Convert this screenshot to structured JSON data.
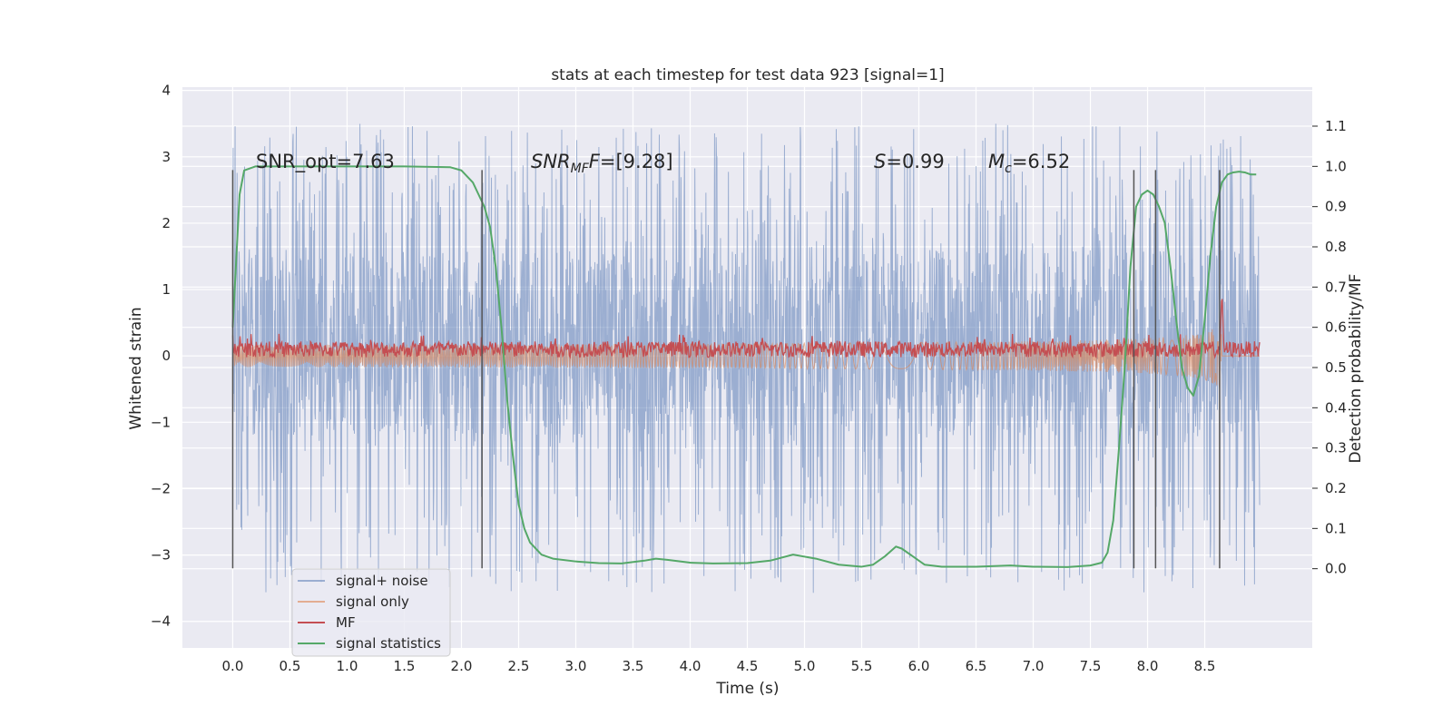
{
  "chart_data": {
    "type": "line",
    "title": "stats at each timestep for test data 923 [signal=1]",
    "xlabel": "Time (s)",
    "ylabel_left": "Whitened strain",
    "ylabel_right": "Detection probability/MF",
    "xlim": [
      -0.44,
      9.44
    ],
    "ylim_left": [
      -4.4,
      4.05
    ],
    "ylim_right": [
      -0.197,
      1.197
    ],
    "xticks": [
      0.0,
      0.5,
      1.0,
      1.5,
      2.0,
      2.5,
      3.0,
      3.5,
      4.0,
      4.5,
      5.0,
      5.5,
      6.0,
      6.5,
      7.0,
      7.5,
      8.0,
      8.5
    ],
    "xtick_labels": [
      "0.0",
      "0.5",
      "1.0",
      "1.5",
      "2.0",
      "2.5",
      "3.0",
      "3.5",
      "4.0",
      "4.5",
      "5.0",
      "5.5",
      "6.0",
      "6.5",
      "7.0",
      "7.5",
      "8.0",
      "8.5"
    ],
    "yticks_left": [
      -4,
      -3,
      -2,
      -1,
      0,
      1,
      2,
      3,
      4
    ],
    "ytick_labels_left": [
      "−4",
      "−3",
      "−2",
      "−1",
      "0",
      "1",
      "2",
      "3",
      "4"
    ],
    "yticks_right": [
      0.0,
      0.1,
      0.2,
      0.3,
      0.4,
      0.5,
      0.6,
      0.7,
      0.8,
      0.9,
      1.0,
      1.1
    ],
    "ytick_labels_right": [
      "0.0",
      "0.1",
      "0.2",
      "0.3",
      "0.4",
      "0.5",
      "0.6",
      "0.7",
      "0.8",
      "0.9",
      "1.0",
      "1.1"
    ],
    "grid": true,
    "legend_position": "lower-left",
    "annotations": {
      "snr_opt": "SNR_opt=7.63",
      "snr_mf_name": "SNR",
      "snr_mf_sub": "MF",
      "snr_mf_value": "=[9.28]",
      "s_name": "S",
      "s_value": "=0.99",
      "mc_name": "M",
      "mc_sub": "c",
      "mc_value": "=6.52"
    },
    "vertical_lines_x": [
      0.0,
      2.18,
      7.88,
      8.07,
      8.63
    ],
    "vertical_lines_ylim_left": [
      -3.2,
      2.8
    ],
    "series": [
      {
        "name": "signal+ noise",
        "color": "#4c72b0",
        "axis": "left",
        "kind": "noise",
        "x_range": [
          0.0,
          8.98
        ],
        "band": [
          -1.2,
          1.6
        ],
        "spike_max": 3.5,
        "spike_min": -4.0
      },
      {
        "name": "signal only",
        "color": "#dd8452",
        "axis": "left",
        "kind": "chirp",
        "x_range": [
          0.0,
          8.98
        ],
        "peak_x": 8.65,
        "peak_amplitude": 0.6
      },
      {
        "name": "MF",
        "color": "#c44e52",
        "axis": "left",
        "kind": "noise",
        "x_range": [
          0.0,
          8.98
        ],
        "center": 0.1,
        "spike_max": 1.0,
        "spike_x": 8.65
      },
      {
        "name": "signal statistics",
        "color": "#55a868",
        "axis": "right",
        "x": [
          0.0,
          0.06,
          0.1,
          0.15,
          0.2,
          0.4,
          0.6,
          1.0,
          1.5,
          1.9,
          2.0,
          2.1,
          2.15,
          2.2,
          2.25,
          2.3,
          2.35,
          2.4,
          2.45,
          2.5,
          2.55,
          2.6,
          2.7,
          2.8,
          3.0,
          3.2,
          3.4,
          3.6,
          3.7,
          3.8,
          4.0,
          4.2,
          4.5,
          4.7,
          4.9,
          5.1,
          5.3,
          5.5,
          5.6,
          5.7,
          5.8,
          5.85,
          5.95,
          6.05,
          6.2,
          6.5,
          6.8,
          7.0,
          7.3,
          7.5,
          7.6,
          7.65,
          7.7,
          7.75,
          7.8,
          7.85,
          7.9,
          7.95,
          8.0,
          8.05,
          8.1,
          8.15,
          8.2,
          8.25,
          8.3,
          8.35,
          8.4,
          8.45,
          8.5,
          8.55,
          8.6,
          8.65,
          8.7,
          8.75,
          8.8,
          8.85,
          8.9,
          8.95
        ],
        "y": [
          0.6,
          0.93,
          0.99,
          0.995,
          1.0,
          1.0,
          1.0,
          1.0,
          1.0,
          0.998,
          0.99,
          0.96,
          0.93,
          0.9,
          0.85,
          0.75,
          0.6,
          0.42,
          0.28,
          0.16,
          0.1,
          0.065,
          0.035,
          0.025,
          0.018,
          0.014,
          0.013,
          0.02,
          0.025,
          0.022,
          0.015,
          0.013,
          0.014,
          0.02,
          0.035,
          0.025,
          0.01,
          0.005,
          0.01,
          0.03,
          0.055,
          0.05,
          0.03,
          0.01,
          0.005,
          0.005,
          0.008,
          0.005,
          0.004,
          0.008,
          0.015,
          0.04,
          0.12,
          0.3,
          0.5,
          0.75,
          0.9,
          0.93,
          0.94,
          0.93,
          0.9,
          0.86,
          0.75,
          0.62,
          0.5,
          0.45,
          0.43,
          0.48,
          0.62,
          0.78,
          0.9,
          0.96,
          0.98,
          0.985,
          0.987,
          0.985,
          0.98,
          0.98
        ]
      }
    ]
  }
}
